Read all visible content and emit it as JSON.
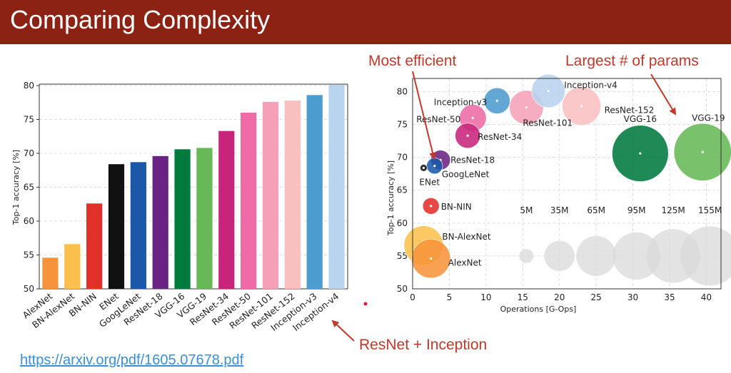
{
  "slide": {
    "title": "Comparing Complexity",
    "link": "https://arxiv.org/pdf/1605.07678.pdf",
    "header_color": "#8b2214"
  },
  "annotations": {
    "most_efficient": "Most efficient",
    "largest_params": "Largest # of params",
    "resnet_inception": "ResNet + Inception",
    "color": "#c0392b"
  },
  "chart_data": [
    {
      "type": "bar",
      "ylabel": "Top-1 accuracy [%]",
      "ylim": [
        50,
        80
      ],
      "yticks": [
        50,
        55,
        60,
        65,
        70,
        75,
        80
      ],
      "grid": true,
      "categories": [
        "AlexNet",
        "BN-AlexNet",
        "BN-NIN",
        "ENet",
        "GoogLeNet",
        "ResNet-18",
        "VGG-16",
        "VGG-19",
        "ResNet-34",
        "ResNet-50",
        "ResNet-101",
        "ResNet-152",
        "Inception-v3",
        "Inception-v4"
      ],
      "values": [
        54.6,
        56.6,
        62.6,
        68.4,
        68.7,
        69.6,
        70.6,
        70.8,
        73.3,
        76.0,
        77.6,
        77.8,
        78.6,
        80.1
      ],
      "colors": [
        "#f7943b",
        "#fbc04b",
        "#e2302b",
        "#111111",
        "#1b59a8",
        "#6a2283",
        "#007a3d",
        "#66b956",
        "#c7257b",
        "#ee6ba5",
        "#f5a0b8",
        "#f9c0c0",
        "#4d9ccf",
        "#b8d4ee"
      ]
    },
    {
      "type": "scatter",
      "xlabel": "Operations [G-Ops]",
      "ylabel": "Top-1 accuracy [%]",
      "xlim": [
        0,
        42
      ],
      "ylim": [
        50,
        82
      ],
      "xticks": [
        0,
        5,
        10,
        15,
        20,
        25,
        30,
        35,
        40
      ],
      "yticks": [
        50,
        55,
        60,
        65,
        70,
        75,
        80
      ],
      "grid": true,
      "points": [
        {
          "name": "Inception-v4",
          "x": 18.5,
          "y": 80.1,
          "params": 43,
          "color": "#b8d4ee"
        },
        {
          "name": "Inception-v3",
          "x": 11.5,
          "y": 78.6,
          "params": 24,
          "color": "#4d9ccf"
        },
        {
          "name": "ResNet-152",
          "x": 23.0,
          "y": 77.8,
          "params": 60,
          "color": "#f9c0c0"
        },
        {
          "name": "ResNet-101",
          "x": 15.5,
          "y": 77.6,
          "params": 45,
          "color": "#f5a0b8"
        },
        {
          "name": "ResNet-50",
          "x": 8.2,
          "y": 76.0,
          "params": 26,
          "color": "#ee6ba5"
        },
        {
          "name": "ResNet-34",
          "x": 7.5,
          "y": 73.3,
          "params": 22,
          "color": "#c7257b"
        },
        {
          "name": "ResNet-18",
          "x": 3.8,
          "y": 69.6,
          "params": 12,
          "color": "#6a2283"
        },
        {
          "name": "GoogLeNet",
          "x": 3.0,
          "y": 68.7,
          "params": 7,
          "color": "#1b59a8"
        },
        {
          "name": "ENet",
          "x": 1.5,
          "y": 68.4,
          "params": 0.4,
          "color": "#111111"
        },
        {
          "name": "BN-NIN",
          "x": 2.5,
          "y": 62.6,
          "params": 7.6,
          "color": "#e2302b"
        },
        {
          "name": "VGG-16",
          "x": 31.0,
          "y": 70.6,
          "params": 138,
          "color": "#007a3d"
        },
        {
          "name": "VGG-19",
          "x": 39.5,
          "y": 70.8,
          "params": 144,
          "color": "#66b956"
        },
        {
          "name": "BN-AlexNet",
          "x": 1.5,
          "y": 56.6,
          "params": 62,
          "color": "#fbc04b"
        },
        {
          "name": "AlexNet",
          "x": 2.5,
          "y": 54.6,
          "params": 61,
          "color": "#f7943b"
        }
      ],
      "size_legend": [
        {
          "label": "5M",
          "x": 15.5,
          "params": 5
        },
        {
          "label": "35M",
          "x": 20.0,
          "params": 35
        },
        {
          "label": "65M",
          "x": 25.0,
          "params": 65
        },
        {
          "label": "95M",
          "x": 30.5,
          "params": 95
        },
        {
          "label": "125M",
          "x": 35.5,
          "params": 125
        },
        {
          "label": "155M",
          "x": 40.5,
          "params": 155
        }
      ],
      "size_legend_y": 55,
      "size_legend_color": "#d9d9d9"
    }
  ]
}
